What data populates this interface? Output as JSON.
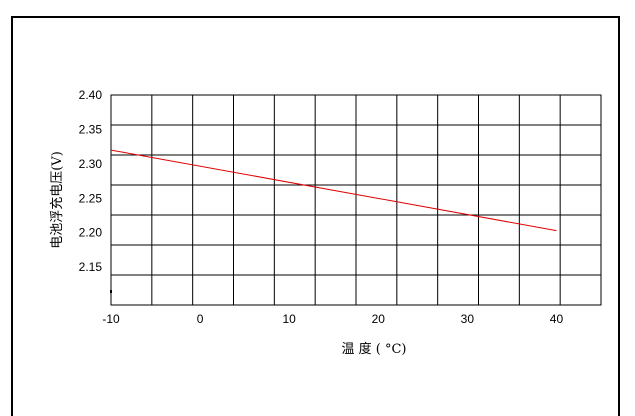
{
  "chart_data": {
    "type": "line",
    "xlabel": "温 度 ( °C)",
    "ylabel": "电池浮充电压(V)",
    "x_ticks": [
      -10,
      0,
      10,
      20,
      30,
      40
    ],
    "y_ticks": [
      "2.15",
      "2.20",
      "2.25",
      "2.30",
      "2.35",
      "2.40"
    ],
    "xlim": [
      -10,
      45
    ],
    "ylim": [
      2.095,
      2.4
    ],
    "grid": true,
    "series": [
      {
        "color": "#e00000",
        "x": [
          -10,
          40
        ],
        "y": [
          2.32,
          2.203
        ]
      }
    ]
  }
}
